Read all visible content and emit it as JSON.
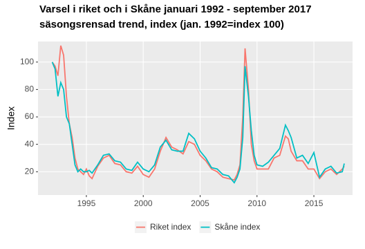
{
  "chart_data": {
    "type": "line",
    "title": "Varsel i riket och i Skåne januari 1992 -  september   2017",
    "subtitle": "säsongsrensad trend, index (jan. 1992=index 100)",
    "y_label": "Index",
    "x": [
      1992.0,
      1992.25,
      1992.5,
      1992.75,
      1993.0,
      1993.25,
      1993.5,
      1993.75,
      1994.0,
      1994.25,
      1994.5,
      1994.75,
      1995.0,
      1995.25,
      1995.5,
      1996.0,
      1996.5,
      1997.0,
      1997.5,
      1998.0,
      1998.5,
      1999.0,
      1999.5,
      2000.0,
      2000.5,
      2001.0,
      2001.5,
      2002.0,
      2002.5,
      2003.0,
      2003.5,
      2004.0,
      2004.5,
      2005.0,
      2005.5,
      2006.0,
      2006.5,
      2007.0,
      2007.5,
      2008.0,
      2008.25,
      2008.5,
      2008.75,
      2008.95,
      2009.25,
      2009.5,
      2009.75,
      2010.0,
      2010.5,
      2011.0,
      2011.5,
      2012.0,
      2012.5,
      2012.75,
      2013.0,
      2013.5,
      2014.0,
      2014.5,
      2015.0,
      2015.5,
      2016.0,
      2016.5,
      2017.0,
      2017.5,
      2017.67
    ],
    "series": [
      {
        "name": "Riket index",
        "color": "#F8766D",
        "values": [
          100,
          97,
          90,
          112,
          105,
          75,
          55,
          45,
          30,
          22,
          20,
          18,
          22,
          17,
          15,
          24,
          30,
          32,
          26,
          25,
          20,
          19,
          24,
          18,
          16,
          22,
          35,
          45,
          38,
          36,
          33,
          42,
          40,
          32,
          28,
          22,
          20,
          16,
          15,
          14,
          18,
          25,
          60,
          110,
          80,
          40,
          28,
          22,
          22,
          22,
          30,
          32,
          46,
          44,
          35,
          28,
          28,
          22,
          22,
          15,
          20,
          22,
          18,
          22,
          24
        ]
      },
      {
        "name": "Skåne index",
        "color": "#00BFC4",
        "values": [
          100,
          95,
          75,
          85,
          80,
          60,
          55,
          40,
          25,
          20,
          22,
          20,
          20,
          21,
          19,
          25,
          32,
          33,
          28,
          27,
          22,
          21,
          27,
          22,
          20,
          25,
          38,
          43,
          36,
          35,
          35,
          48,
          44,
          35,
          30,
          23,
          22,
          18,
          17,
          12,
          16,
          22,
          45,
          97,
          75,
          50,
          32,
          25,
          24,
          27,
          32,
          37,
          54,
          50,
          45,
          30,
          32,
          26,
          34,
          16,
          22,
          24,
          19,
          20,
          26
        ]
      }
    ],
    "xlim": [
      1990.75,
      2018.4
    ],
    "xticks": [
      1995,
      2000,
      2005,
      2010,
      2015
    ],
    "ylim": [
      3,
      115
    ],
    "yticks": [
      20,
      40,
      60,
      80,
      100
    ],
    "grid": true,
    "legend": "bottom"
  }
}
